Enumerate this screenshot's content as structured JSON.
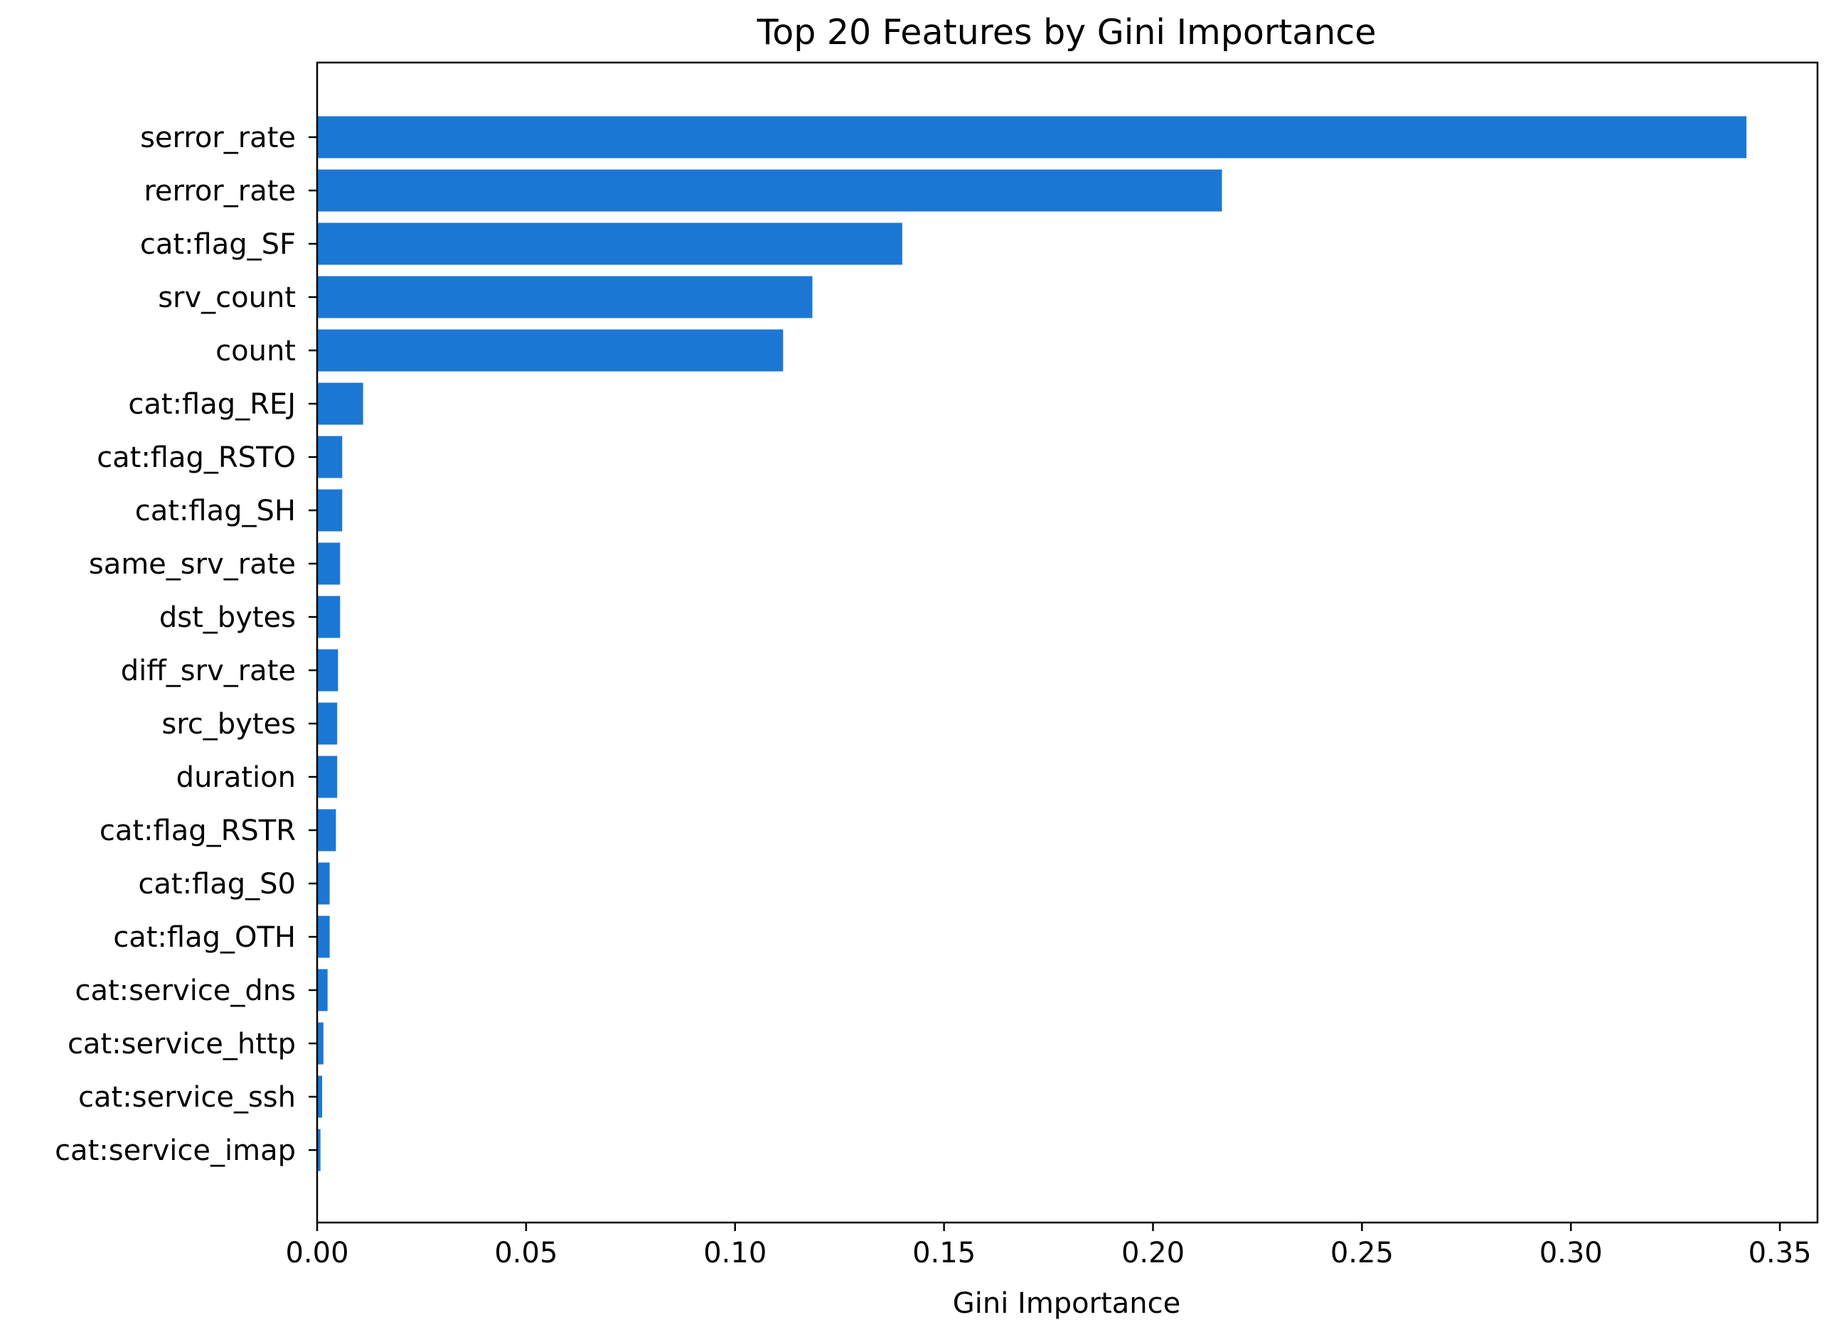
{
  "chart_data": {
    "type": "bar",
    "orientation": "horizontal",
    "title": "Top 20 Features by Gini Importance",
    "xlabel": "Gini Importance",
    "ylabel": "",
    "xlim": [
      0,
      0.359
    ],
    "xticks": [
      "0.00",
      "0.05",
      "0.10",
      "0.15",
      "0.20",
      "0.25",
      "0.30",
      "0.35"
    ],
    "xtick_values": [
      0,
      0.05,
      0.1,
      0.15,
      0.2,
      0.25,
      0.3,
      0.35
    ],
    "grid": false,
    "legend": "none",
    "bar_color": "#1c77d4",
    "categories": [
      "serror_rate",
      "rerror_rate",
      "cat:flag_SF",
      "srv_count",
      "count",
      "cat:flag_REJ",
      "cat:flag_RSTO",
      "cat:flag_SH",
      "same_srv_rate",
      "dst_bytes",
      "diff_srv_rate",
      "src_bytes",
      "duration",
      "cat:flag_RSTR",
      "cat:flag_S0",
      "cat:flag_OTH",
      "cat:service_dns",
      "cat:service_http",
      "cat:service_ssh",
      "cat:service_imap"
    ],
    "values": [
      0.342,
      0.2165,
      0.14,
      0.1185,
      0.1115,
      0.011,
      0.006,
      0.006,
      0.0055,
      0.0055,
      0.005,
      0.0048,
      0.0048,
      0.0045,
      0.003,
      0.003,
      0.0025,
      0.0015,
      0.0012,
      0.0008
    ]
  }
}
